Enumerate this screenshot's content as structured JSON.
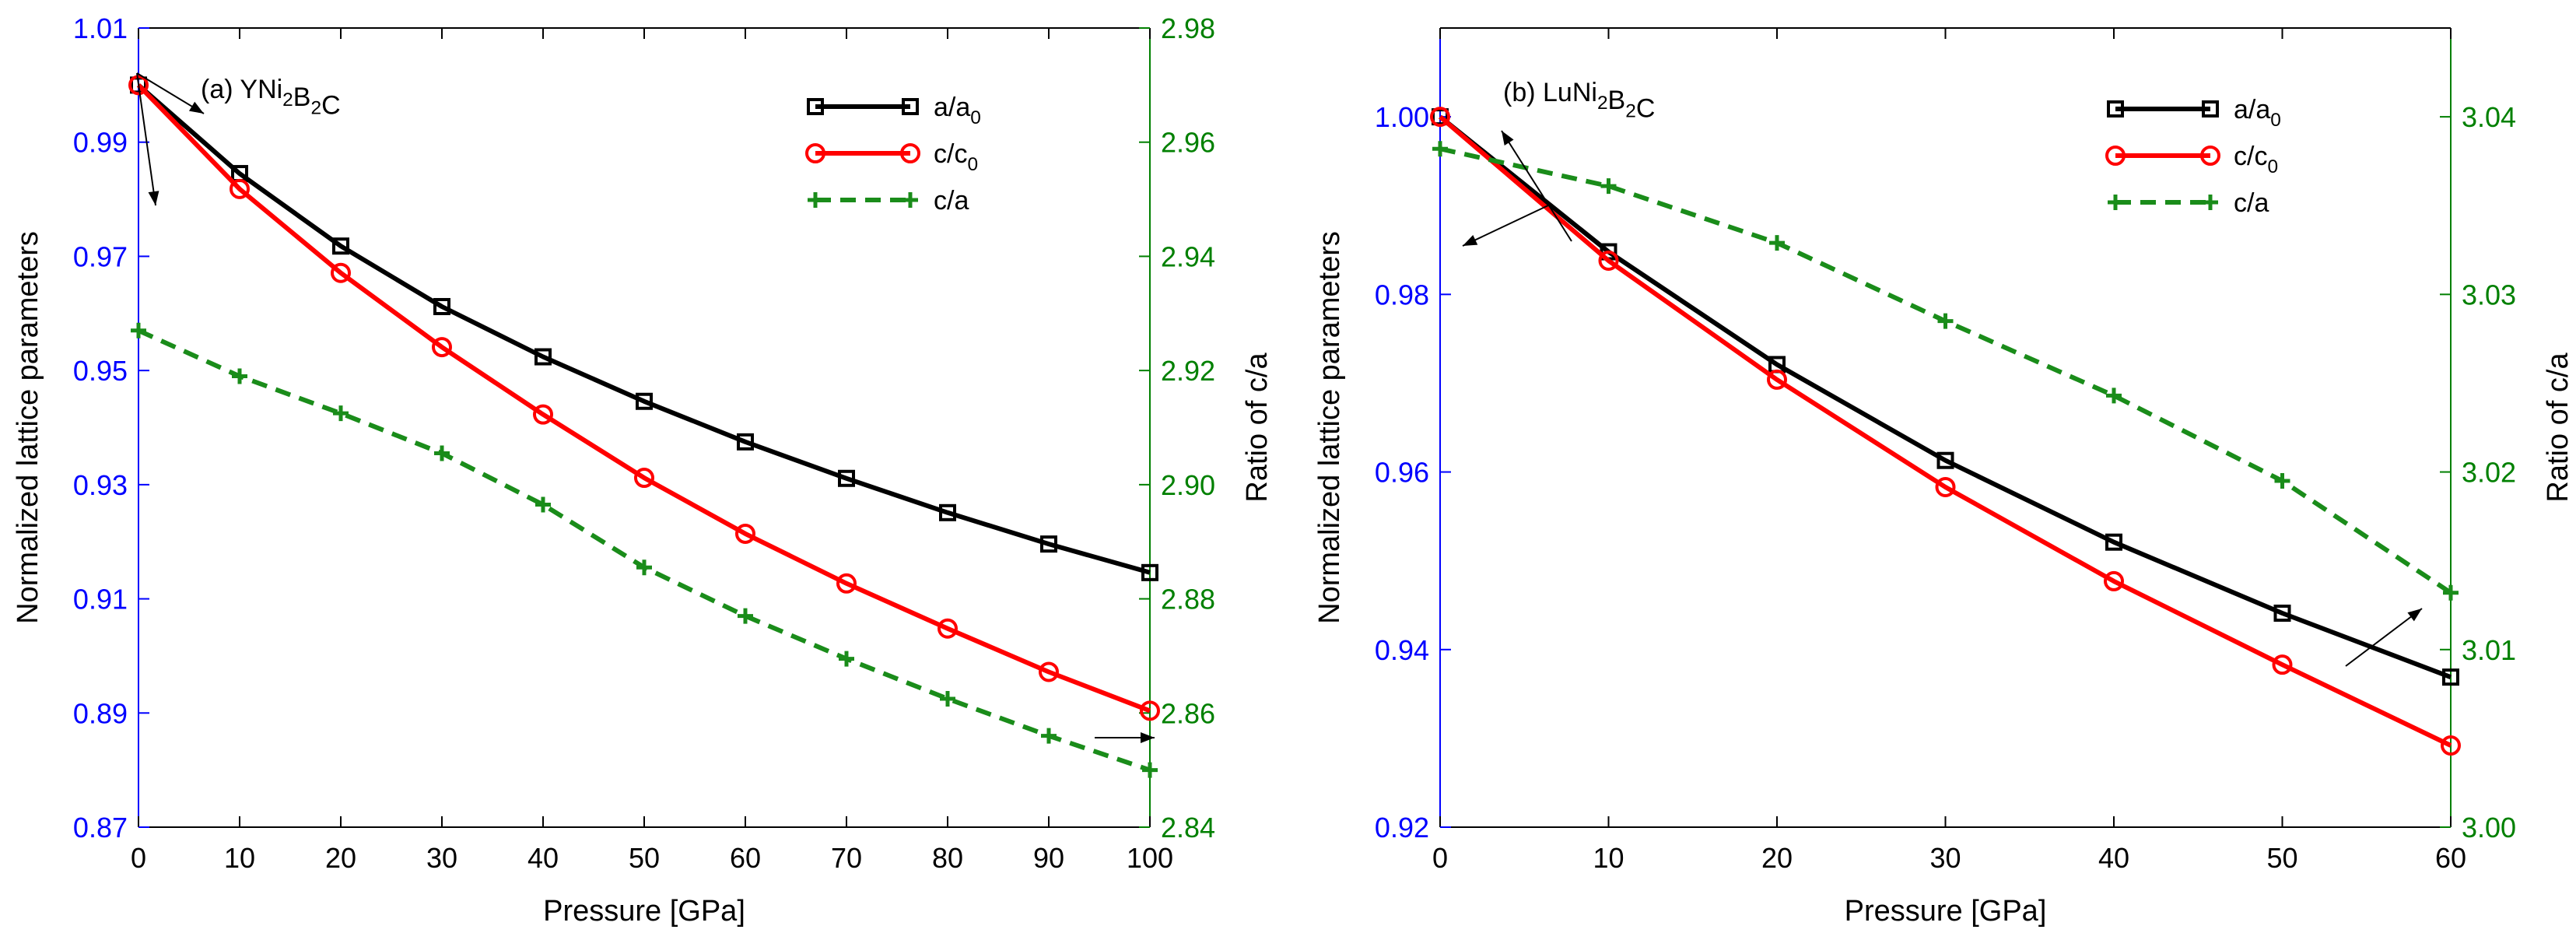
{
  "colors": {
    "left_axis": "#0000ff",
    "right_axis": "#008000",
    "a_series": "#000000",
    "c_series": "#ff0000",
    "ca_series": "#1a8c1a",
    "axis": "#000000"
  },
  "chart_data": [
    {
      "type": "line",
      "panel_label": "(a) YNi",
      "panel_sub1": "2",
      "panel_mid": "B",
      "panel_sub2": "2",
      "panel_end": "C",
      "xlabel": "Pressure [GPa]",
      "ylabel_left": "Normalized lattice parameters",
      "ylabel_right": "Ratio of c/a",
      "xlim": [
        0,
        100
      ],
      "ylim_left": [
        0.87,
        1.01
      ],
      "ylim_right": [
        2.84,
        2.98
      ],
      "x_ticks": [
        "0",
        "10",
        "20",
        "30",
        "40",
        "50",
        "60",
        "70",
        "80",
        "90",
        "100"
      ],
      "y_left_ticks": [
        "0.87",
        "0.89",
        "0.91",
        "0.93",
        "0.95",
        "0.97",
        "0.99",
        "1.01"
      ],
      "y_right_ticks": [
        "2.84",
        "2.86",
        "2.88",
        "2.90",
        "2.92",
        "2.94",
        "2.96",
        "2.98"
      ],
      "x": [
        0,
        10,
        20,
        30,
        40,
        50,
        60,
        70,
        80,
        90,
        100
      ],
      "series": [
        {
          "name": "a/a",
          "sub": "0",
          "axis": "left",
          "marker": "square",
          "style": "solid",
          "values": [
            1.0,
            0.9845,
            0.9718,
            0.9612,
            0.9524,
            0.9446,
            0.9375,
            0.9311,
            0.9251,
            0.9196,
            0.9146
          ]
        },
        {
          "name": "c/c",
          "sub": "0",
          "axis": "left",
          "marker": "circle",
          "style": "solid",
          "values": [
            1.0,
            0.9818,
            0.9671,
            0.9541,
            0.9423,
            0.9312,
            0.9214,
            0.9127,
            0.9048,
            0.8972,
            0.8904
          ]
        },
        {
          "name": "c/a",
          "sub": "",
          "axis": "right",
          "marker": "plus",
          "style": "dashed",
          "values": [
            2.927,
            2.919,
            2.9125,
            2.9055,
            2.8965,
            2.8855,
            2.877,
            2.8695,
            2.8625,
            2.856,
            2.85
          ]
        }
      ]
    },
    {
      "type": "line",
      "panel_label": "(b) LuNi",
      "panel_sub1": "2",
      "panel_mid": "B",
      "panel_sub2": "2",
      "panel_end": "C",
      "xlabel": "Pressure [GPa]",
      "ylabel_left": "Normalized lattice parameters",
      "ylabel_right": "Ratio of c/a",
      "xlim": [
        0,
        60
      ],
      "ylim_left": [
        0.92,
        1.01
      ],
      "ylim_right": [
        3.0,
        3.045
      ],
      "x_ticks": [
        "0",
        "10",
        "20",
        "30",
        "40",
        "50",
        "60"
      ],
      "y_left_ticks": [
        "0.92",
        "0.94",
        "0.96",
        "0.98",
        "1.00"
      ],
      "y_right_ticks": [
        "3.00",
        "3.01",
        "3.02",
        "3.03",
        "3.04"
      ],
      "x": [
        0,
        10,
        20,
        30,
        40,
        50,
        60
      ],
      "series": [
        {
          "name": "a/a",
          "sub": "0",
          "axis": "left",
          "marker": "square",
          "style": "solid",
          "values": [
            1.0,
            0.9848,
            0.9721,
            0.9613,
            0.9521,
            0.9441,
            0.9369
          ]
        },
        {
          "name": "c/c",
          "sub": "0",
          "axis": "left",
          "marker": "circle",
          "style": "solid",
          "values": [
            1.0,
            0.9838,
            0.9704,
            0.9583,
            0.9477,
            0.9383,
            0.9292
          ]
        },
        {
          "name": "c/a",
          "sub": "",
          "axis": "right",
          "marker": "plus",
          "style": "dashed",
          "values": [
            3.0382,
            3.0361,
            3.0329,
            3.0285,
            3.0243,
            3.0195,
            3.0132
          ]
        }
      ]
    }
  ]
}
